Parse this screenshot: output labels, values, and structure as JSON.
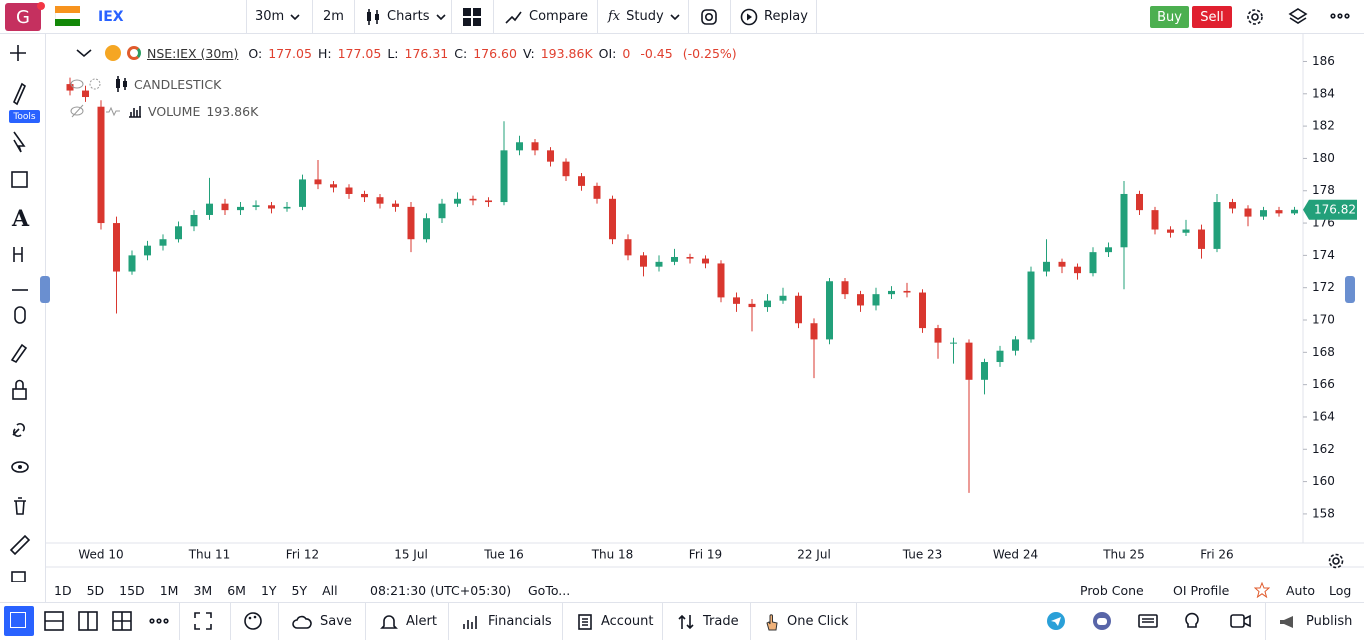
{
  "topbar": {
    "logo": "G",
    "symbol": "IEX",
    "interval": "30m",
    "interval2": "2m",
    "charts": "Charts",
    "compare": "Compare",
    "study": "Study",
    "replay": "Replay",
    "buy": "Buy",
    "sell": "Sell"
  },
  "left_toolbar": {
    "tools": "Tools"
  },
  "legend": {
    "symbol": "NSE:IEX (30m)",
    "o_label": "O:",
    "o": "177.05",
    "h_label": "H:",
    "h": "177.05",
    "l_label": "L:",
    "l": "176.31",
    "c_label": "C:",
    "c": "176.60",
    "v_label": "V:",
    "v": "193.86K",
    "oi_label": "OI:",
    "oi": "0",
    "change": "-0.45",
    "change_pct": "(-0.25%)",
    "candlestick": "CANDLESTICK",
    "volume": "VOLUME",
    "volume_value": "193.86K"
  },
  "chart_data": {
    "type": "candlestick",
    "categories": [
      null,
      null,
      "Wed 10",
      null,
      null,
      null,
      null,
      null,
      null,
      "Thu 11",
      null,
      null,
      null,
      null,
      null,
      "Fri 12",
      null,
      null,
      null,
      null,
      null,
      null,
      "15 Jul",
      null,
      null,
      null,
      null,
      null,
      "Tue 16",
      null,
      null,
      null,
      null,
      null,
      null,
      "Thu 18",
      null,
      null,
      null,
      null,
      null,
      "Fri 19",
      null,
      null,
      null,
      null,
      null,
      null,
      "22 Jul",
      null,
      null,
      null,
      null,
      null,
      null,
      "Tue 23",
      null,
      null,
      null,
      null,
      null,
      "Wed 24",
      null,
      null,
      null,
      null,
      null,
      null,
      "Thu 25",
      null,
      null,
      null,
      null,
      null,
      "Fri 26",
      null,
      null,
      null,
      null,
      null
    ],
    "open": [
      184.6,
      184.2,
      183.2,
      176.0,
      173.0,
      174.0,
      174.6,
      175.0,
      175.8,
      176.5,
      177.2,
      176.8,
      177.0,
      177.1,
      176.9,
      177.0,
      178.7,
      178.4,
      178.2,
      177.8,
      177.6,
      177.2,
      177.0,
      175.0,
      176.3,
      177.2,
      177.5,
      177.4,
      177.3,
      180.5,
      181.0,
      180.5,
      179.8,
      178.9,
      178.3,
      177.5,
      175.0,
      174.0,
      173.3,
      173.6,
      173.9,
      173.8,
      173.5,
      171.4,
      171.0,
      170.8,
      171.2,
      171.5,
      169.8,
      168.8,
      172.4,
      171.6,
      170.9,
      171.6,
      171.8,
      171.7,
      169.5,
      168.6,
      168.6,
      166.3,
      167.4,
      168.1,
      168.8,
      173.0,
      173.6,
      173.3,
      172.9,
      174.2,
      174.5,
      177.8,
      176.8,
      175.6,
      175.4,
      175.6,
      174.4,
      177.3,
      176.9,
      176.4,
      176.8,
      176.6
    ],
    "high": [
      185.0,
      184.5,
      183.6,
      176.4,
      174.3,
      174.9,
      175.3,
      176.1,
      176.8,
      178.8,
      177.5,
      177.3,
      177.4,
      177.3,
      177.3,
      179.0,
      179.9,
      178.6,
      178.4,
      178.0,
      177.8,
      177.4,
      177.3,
      176.6,
      177.5,
      177.9,
      177.7,
      177.6,
      182.3,
      181.4,
      181.2,
      180.7,
      180.0,
      179.1,
      178.5,
      177.7,
      175.3,
      174.2,
      174.0,
      174.4,
      174.1,
      174.0,
      173.7,
      171.7,
      171.3,
      171.6,
      172.0,
      171.7,
      170.1,
      172.6,
      172.6,
      171.8,
      172.0,
      172.1,
      172.3,
      171.9,
      169.7,
      168.9,
      168.8,
      167.6,
      168.4,
      169.0,
      173.3,
      175.0,
      173.8,
      173.5,
      174.5,
      174.8,
      178.6,
      178.0,
      177.0,
      175.8,
      176.2,
      175.9,
      177.8,
      177.5,
      177.1,
      177.0,
      177.0,
      177.0
    ],
    "low": [
      183.9,
      183.5,
      175.6,
      170.4,
      172.8,
      173.7,
      174.3,
      174.8,
      175.5,
      176.2,
      176.5,
      176.5,
      176.8,
      176.6,
      176.7,
      176.8,
      178.1,
      177.9,
      177.5,
      177.3,
      176.9,
      176.7,
      174.2,
      174.8,
      176.0,
      177.0,
      177.1,
      177.0,
      177.1,
      180.2,
      180.2,
      179.5,
      178.6,
      178.0,
      177.2,
      174.7,
      173.7,
      172.7,
      173.0,
      173.4,
      173.5,
      173.2,
      171.1,
      170.5,
      169.3,
      170.5,
      171.0,
      169.5,
      166.4,
      168.5,
      171.3,
      170.5,
      170.6,
      171.3,
      171.4,
      169.2,
      167.6,
      167.3,
      159.3,
      165.4,
      167.1,
      167.8,
      168.6,
      172.7,
      172.9,
      172.5,
      172.7,
      173.9,
      171.9,
      176.5,
      175.3,
      175.1,
      175.2,
      173.8,
      174.2,
      176.6,
      175.8,
      176.2,
      176.4,
      176.5
    ],
    "close": [
      184.2,
      183.8,
      176.0,
      173.0,
      174.0,
      174.6,
      175.0,
      175.8,
      176.5,
      177.2,
      176.8,
      177.0,
      177.1,
      176.9,
      177.0,
      178.7,
      178.4,
      178.2,
      177.8,
      177.6,
      177.2,
      177.0,
      175.0,
      176.3,
      177.2,
      177.5,
      177.4,
      177.3,
      180.5,
      181.0,
      180.5,
      179.8,
      178.9,
      178.3,
      177.5,
      175.0,
      174.0,
      173.3,
      173.6,
      173.9,
      173.8,
      173.5,
      171.4,
      171.0,
      170.8,
      171.2,
      171.5,
      169.8,
      168.8,
      172.4,
      171.6,
      170.9,
      171.6,
      171.8,
      171.7,
      169.5,
      168.6,
      168.6,
      166.3,
      167.4,
      168.1,
      168.8,
      173.0,
      173.6,
      173.3,
      172.9,
      174.2,
      174.5,
      177.8,
      176.8,
      175.6,
      175.4,
      175.6,
      174.4,
      177.3,
      176.9,
      176.4,
      176.8,
      176.6,
      176.82
    ],
    "up_color": "#22a07a",
    "down_color": "#d9372f",
    "ylim": [
      156.2,
      187.7
    ],
    "yticks": [
      158,
      160,
      162,
      164,
      166,
      168,
      170,
      172,
      174,
      176,
      178,
      180,
      182,
      184,
      186
    ]
  },
  "bottom_bar": {
    "ranges": [
      "1D",
      "5D",
      "15D",
      "1M",
      "3M",
      "6M",
      "1Y",
      "5Y",
      "All"
    ],
    "time": "08:21:30 (UTC+05:30)",
    "goto": "GoTo...",
    "prob_cone": "Prob Cone",
    "oi_profile": "OI Profile",
    "auto": "Auto",
    "log": "Log"
  },
  "footer": {
    "save": "Save",
    "alert": "Alert",
    "financials": "Financials",
    "account": "Account",
    "trade": "Trade",
    "one_click": "One Click",
    "publish": "Publish"
  }
}
